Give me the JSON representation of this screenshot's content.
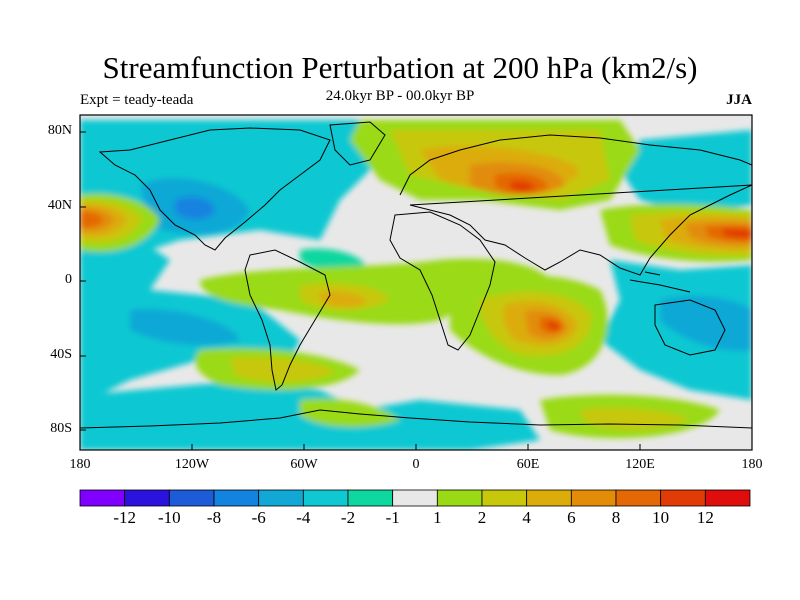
{
  "title": "Streamfunction Perturbation at 200 hPa (km2/s)",
  "left_label": "Expt = teady-teada",
  "center_label": "24.0kyr BP - 00.0kyr BP",
  "right_label": "JJA",
  "map": {
    "projection": "cylindrical equidistant",
    "lon_range": [
      -180,
      180
    ],
    "lat_range": [
      -90,
      90
    ],
    "y_ticks": [
      "80N",
      "40N",
      "0",
      "40S",
      "80S"
    ],
    "x_ticks": [
      "180",
      "120W",
      "60W",
      "0",
      "60E",
      "120E",
      "180"
    ]
  },
  "colorbar": {
    "labels": [
      "-12",
      "-10",
      "-8",
      "-6",
      "-4",
      "-2",
      "-1",
      "1",
      "2",
      "4",
      "6",
      "8",
      "10",
      "12"
    ],
    "colors": [
      "#7f00ff",
      "#2b12dc",
      "#1d5bd9",
      "#1383e0",
      "#11a8d6",
      "#10c8d2",
      "#0ed79f",
      "#e8e8e8",
      "#9ada14",
      "#c7c80c",
      "#dcac0a",
      "#e28c08",
      "#e46806",
      "#e23c06",
      "#e00d0d"
    ]
  }
}
